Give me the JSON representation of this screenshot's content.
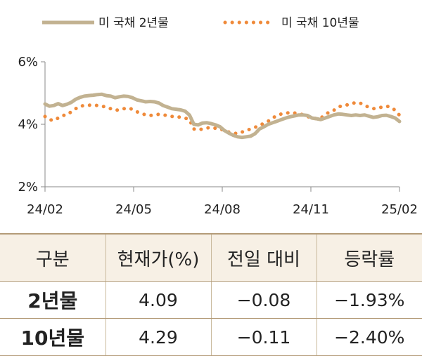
{
  "chart_data": {
    "type": "line",
    "series": [
      {
        "name": "미 국채 2년물",
        "color": "#c2b291",
        "style": "solid"
      },
      {
        "name": "미 국채 10년물",
        "color": "#ef8a3a",
        "style": "dotted"
      }
    ],
    "yticks": [
      "6%",
      "4%",
      "2%"
    ],
    "xticks": [
      "24/02",
      "24/05",
      "24/08",
      "24/11",
      "25/02"
    ],
    "ylim": [
      2,
      6
    ],
    "y_2y": [
      4.65,
      4.58,
      4.6,
      4.66,
      4.6,
      4.64,
      4.7,
      4.8,
      4.86,
      4.9,
      4.92,
      4.93,
      4.95,
      4.96,
      4.92,
      4.9,
      4.85,
      4.88,
      4.9,
      4.89,
      4.85,
      4.78,
      4.75,
      4.72,
      4.73,
      4.72,
      4.68,
      4.6,
      4.55,
      4.5,
      4.48,
      4.46,
      4.42,
      4.3,
      4.0,
      3.98,
      4.04,
      4.05,
      4.02,
      3.98,
      3.92,
      3.8,
      3.72,
      3.65,
      3.6,
      3.58,
      3.6,
      3.62,
      3.7,
      3.85,
      3.92,
      4.0,
      4.05,
      4.1,
      4.15,
      4.2,
      4.24,
      4.27,
      4.3,
      4.3,
      4.28,
      4.2,
      4.18,
      4.15,
      4.2,
      4.25,
      4.3,
      4.33,
      4.32,
      4.3,
      4.28,
      4.3,
      4.28,
      4.3,
      4.26,
      4.22,
      4.24,
      4.28,
      4.29,
      4.25,
      4.2,
      4.09
    ],
    "y_10y": [
      4.25,
      4.15,
      4.12,
      4.2,
      4.28,
      4.3,
      4.4,
      4.5,
      4.58,
      4.6,
      4.61,
      4.62,
      4.6,
      4.58,
      4.55,
      4.5,
      4.45,
      4.46,
      4.5,
      4.52,
      4.48,
      4.4,
      4.35,
      4.3,
      4.28,
      4.3,
      4.32,
      4.3,
      4.28,
      4.25,
      4.25,
      4.22,
      4.2,
      4.15,
      3.85,
      3.82,
      3.85,
      3.88,
      3.9,
      3.87,
      3.85,
      3.8,
      3.75,
      3.72,
      3.7,
      3.75,
      3.8,
      3.85,
      3.9,
      3.98,
      4.02,
      4.1,
      4.2,
      4.28,
      4.33,
      4.35,
      4.38,
      4.36,
      4.35,
      4.3,
      4.25,
      4.2,
      4.18,
      4.2,
      4.3,
      4.4,
      4.45,
      4.55,
      4.6,
      4.62,
      4.65,
      4.7,
      4.68,
      4.6,
      4.55,
      4.5,
      4.52,
      4.55,
      4.58,
      4.55,
      4.45,
      4.29
    ]
  },
  "table": {
    "headers": [
      "구분",
      "현재가(%)",
      "전일 대비",
      "등락률"
    ],
    "rows": [
      [
        "2년물",
        "4.09",
        "−0.08",
        "−1.93%"
      ],
      [
        "10년물",
        "4.29",
        "−0.11",
        "−2.40%"
      ]
    ]
  }
}
